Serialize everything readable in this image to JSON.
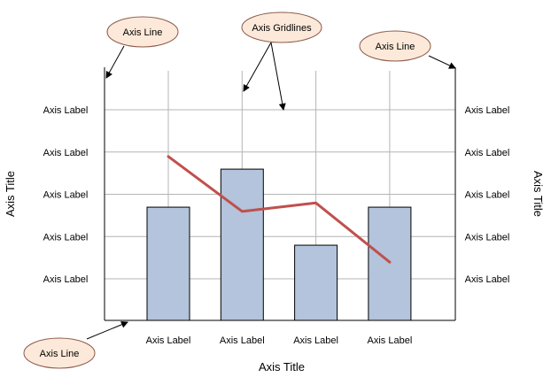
{
  "callouts": {
    "axis_line_top_left": "Axis Line",
    "axis_gridlines": "Axis Gridlines",
    "axis_line_top_right": "Axis Line",
    "axis_line_bottom_left": "Axis Line"
  },
  "axis_titles": {
    "left": "Axis Title",
    "right": "Axis Title",
    "bottom": "Axis Title"
  },
  "left_axis_labels": [
    "Axis Label",
    "Axis Label",
    "Axis Label",
    "Axis Label",
    "Axis Label"
  ],
  "right_axis_labels": [
    "Axis Label",
    "Axis Label",
    "Axis Label",
    "Axis Label",
    "Axis Label"
  ],
  "x_axis_labels": [
    "Axis Label",
    "Axis Label",
    "Axis Label",
    "Axis Label"
  ],
  "colors": {
    "bar_fill": "#b3c4dc",
    "bar_stroke": "#000000",
    "line": "#c0504d",
    "gridline": "#b4b4b4",
    "callout_fill": "#fde9d9",
    "callout_stroke": "#8b5a4a"
  },
  "chart_data": {
    "type": "bar",
    "categories": [
      "Axis Label",
      "Axis Label",
      "Axis Label",
      "Axis Label"
    ],
    "y_tick_labels": [
      "Axis Label",
      "Axis Label",
      "Axis Label",
      "Axis Label",
      "Axis Label"
    ],
    "series": [
      {
        "type": "bar",
        "values": [
          2.7,
          3.6,
          1.8,
          2.7
        ]
      },
      {
        "type": "line",
        "values": [
          3.9,
          2.6,
          2.8,
          1.4
        ]
      }
    ],
    "ylim": [
      0,
      5
    ],
    "grid": true,
    "xlabel": "Axis Title",
    "ylabel": "Axis Title",
    "ylabel_right": "Axis Title"
  }
}
